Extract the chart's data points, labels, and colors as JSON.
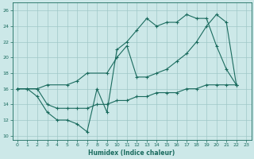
{
  "xlabel": "Humidex (Indice chaleur)",
  "bg_color": "#cce8e8",
  "line_color": "#1a6b5e",
  "grid_color": "#a0c8c8",
  "xlim": [
    -0.5,
    23.5
  ],
  "ylim": [
    9.5,
    27.0
  ],
  "xticks": [
    0,
    1,
    2,
    3,
    4,
    5,
    6,
    7,
    8,
    9,
    10,
    11,
    12,
    13,
    14,
    15,
    16,
    17,
    18,
    19,
    20,
    21,
    22,
    23
  ],
  "yticks": [
    10,
    12,
    14,
    16,
    18,
    20,
    22,
    24,
    26
  ],
  "line1_x": [
    0,
    1,
    2,
    3,
    4,
    5,
    6,
    7,
    8,
    9,
    10,
    11,
    12,
    13,
    14,
    15,
    16,
    17,
    18,
    19,
    20,
    21,
    22
  ],
  "line1_y": [
    16.0,
    16.0,
    15.0,
    13.0,
    12.0,
    12.0,
    11.5,
    10.5,
    16.0,
    13.0,
    21.0,
    22.0,
    23.5,
    25.0,
    24.0,
    24.5,
    24.5,
    25.5,
    25.0,
    25.0,
    21.5,
    18.5,
    16.5
  ],
  "line2_x": [
    0,
    2,
    3,
    5,
    6,
    7,
    9,
    10,
    11,
    12,
    13,
    14,
    15,
    16,
    17,
    18,
    19,
    20,
    21,
    22
  ],
  "line2_y": [
    16.0,
    16.0,
    16.5,
    16.5,
    17.0,
    18.0,
    18.0,
    20.0,
    21.5,
    17.5,
    17.5,
    18.0,
    18.5,
    19.5,
    20.5,
    22.0,
    24.0,
    25.5,
    24.5,
    16.5
  ],
  "line3_x": [
    0,
    1,
    2,
    3,
    4,
    5,
    6,
    7,
    8,
    9,
    10,
    11,
    12,
    13,
    14,
    15,
    16,
    17,
    18,
    19,
    20,
    21,
    22
  ],
  "line3_y": [
    16.0,
    16.0,
    16.0,
    14.0,
    13.5,
    13.5,
    13.5,
    13.5,
    14.0,
    14.0,
    14.5,
    14.5,
    15.0,
    15.0,
    15.5,
    15.5,
    15.5,
    16.0,
    16.0,
    16.5,
    16.5,
    16.5,
    16.5
  ]
}
